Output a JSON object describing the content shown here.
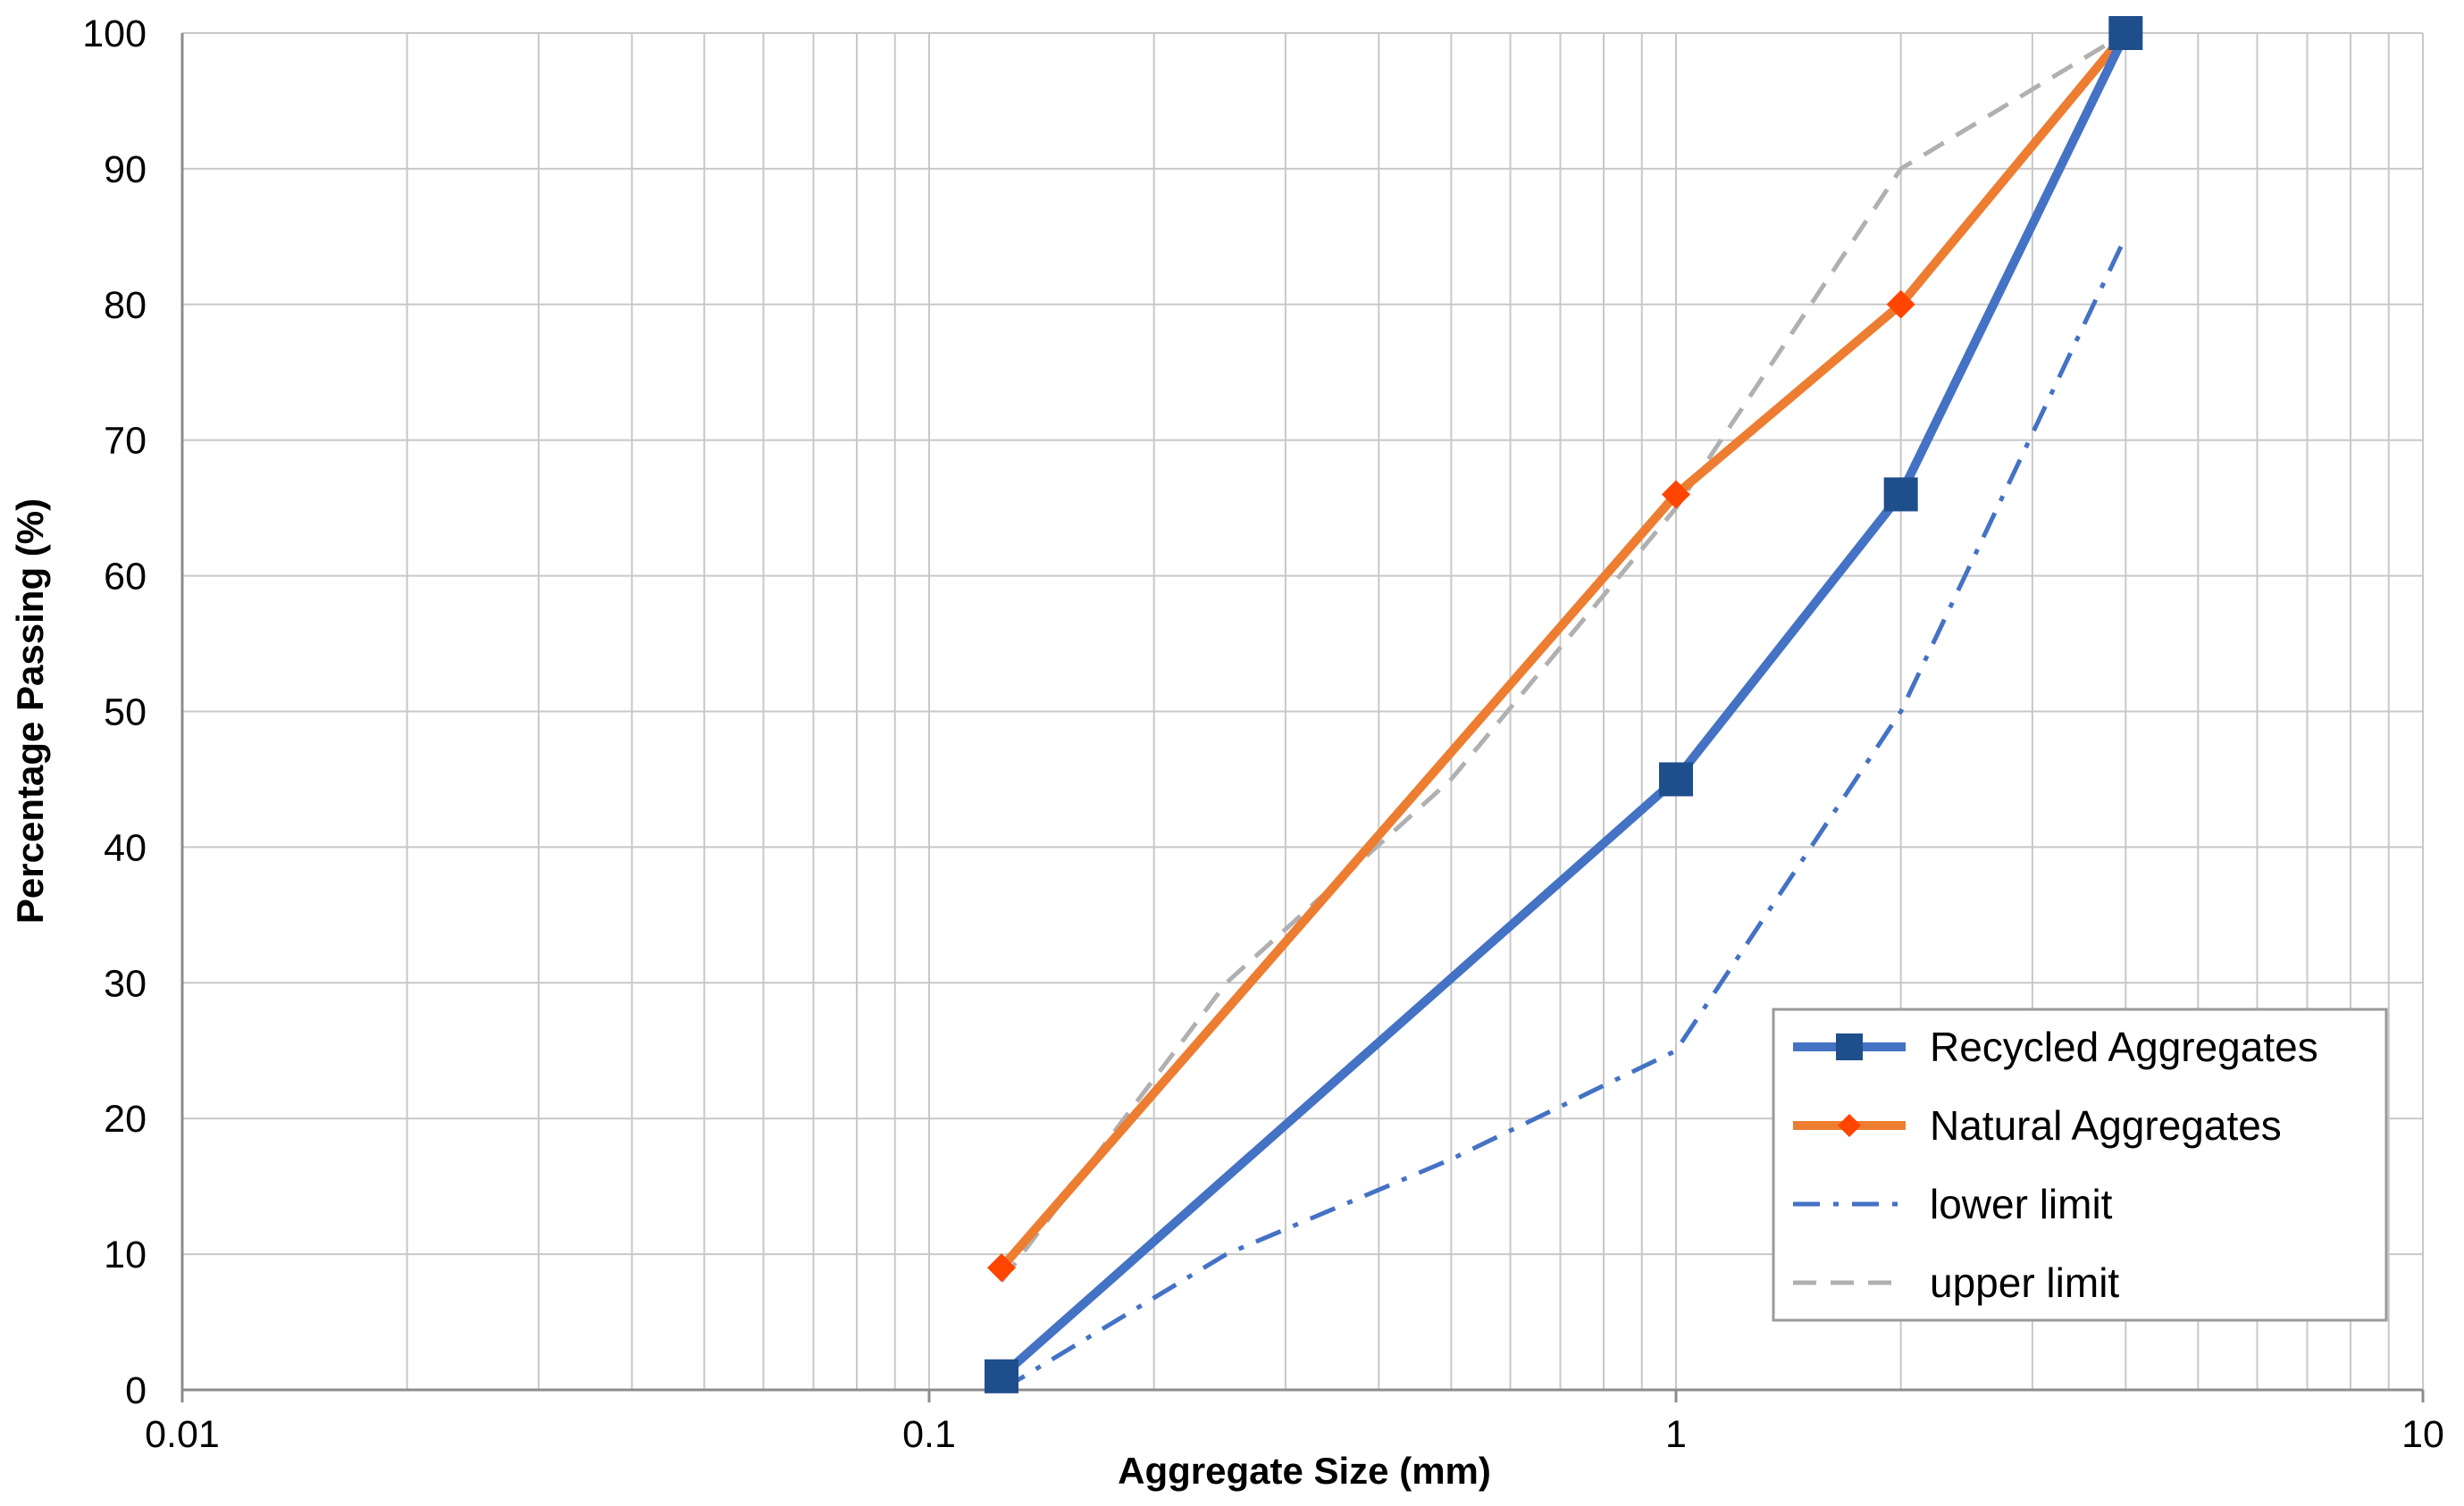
{
  "chart_data": {
    "type": "line",
    "title": "",
    "xlabel": "Aggregate Size (mm)",
    "ylabel": "Percentage Passing (%)",
    "x_scale": "log",
    "xlim": [
      0.01,
      10
    ],
    "ylim": [
      0,
      100
    ],
    "x_ticks": [
      "0.01",
      "0.1",
      "1",
      "10"
    ],
    "y_ticks": [
      "0",
      "10",
      "20",
      "30",
      "40",
      "50",
      "60",
      "70",
      "80",
      "90",
      "100"
    ],
    "grid": true,
    "legend_position": "bottom-right",
    "series": [
      {
        "name": "Recycled Aggregates",
        "color": "#4472C4",
        "marker_color": "#1F4E8C",
        "marker": "square",
        "style": "solid",
        "x": [
          0.125,
          1,
          2,
          4
        ],
        "y": [
          1,
          45,
          66,
          100
        ]
      },
      {
        "name": "Natural Aggregates",
        "color": "#ED7D31",
        "marker_color": "#FF4500",
        "marker": "diamond",
        "style": "solid",
        "x": [
          0.125,
          1,
          2,
          4
        ],
        "y": [
          9,
          66,
          80,
          100
        ]
      },
      {
        "name": "lower limit",
        "color": "#4472C4",
        "marker": "none",
        "style": "dash-dot",
        "x": [
          0.125,
          0.25,
          0.5,
          1,
          2,
          4
        ],
        "y": [
          0,
          10,
          17,
          25,
          50,
          85
        ]
      },
      {
        "name": "upper limit",
        "color": "#B0B0B0",
        "marker": "none",
        "style": "dashed",
        "x": [
          0.125,
          0.25,
          0.5,
          1,
          2,
          4
        ],
        "y": [
          8,
          30,
          45,
          65,
          90,
          100
        ]
      }
    ]
  }
}
